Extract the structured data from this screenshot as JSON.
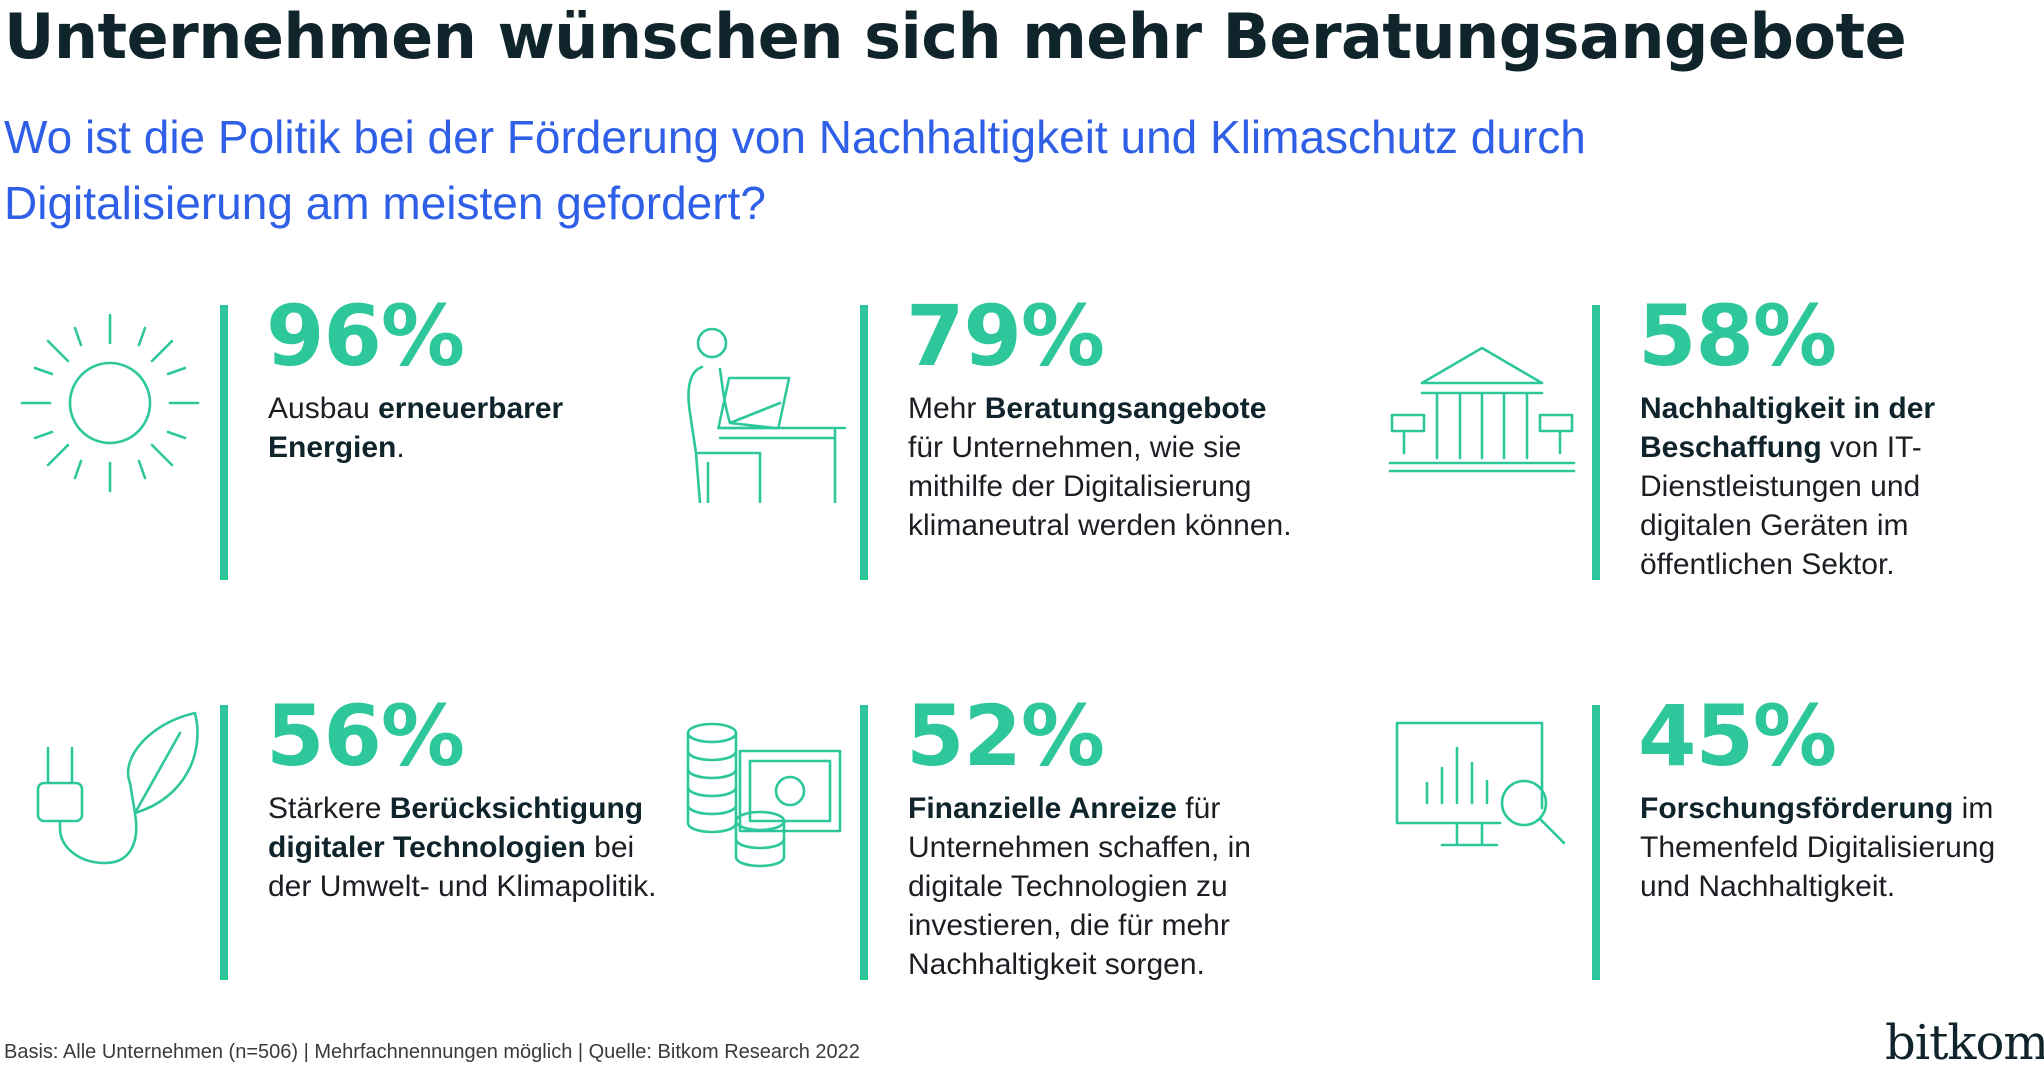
{
  "header": {
    "title": "Unternehmen wünschen sich mehr Beratungsangebote",
    "subtitle": "Wo ist die Politik bei der Förderung von Nachhaltigkeit und Klimaschutz durch Digitalisierung am meisten gefordert?"
  },
  "cards": [
    {
      "icon": "sun-icon",
      "percent": "96%",
      "value": 96,
      "text": {
        "pre": "Ausbau ",
        "bold": "erneuerbarer Energien",
        "post": "."
      }
    },
    {
      "icon": "person-at-desk-icon",
      "percent": "79%",
      "value": 79,
      "text": {
        "pre": "Mehr ",
        "bold": "Beratungsangebote",
        "post": " für Unternehmen, wie sie mithilfe der Digitalisierung klimaneutral werden können."
      }
    },
    {
      "icon": "public-building-icon",
      "percent": "58%",
      "value": 58,
      "text": {
        "pre": "",
        "bold": "Nachhaltigkeit in der Beschaffung",
        "post": " von IT-Dienstleistungen und digitalen Geräten im öffentlichen Sektor."
      }
    },
    {
      "icon": "plug-leaf-icon",
      "percent": "56%",
      "value": 56,
      "text": {
        "pre": "Stärkere ",
        "bold": "Berücksichtigung digitaler Technologien",
        "post": " bei der Umwelt- und Klimapolitik."
      }
    },
    {
      "icon": "coins-banknote-icon",
      "percent": "52%",
      "value": 52,
      "text": {
        "pre": "",
        "bold": "Finanzielle Anreize",
        "post": " für Unternehmen schaffen, in digitale Technologien zu investieren, die für mehr Nachhaltigkeit sorgen."
      }
    },
    {
      "icon": "monitor-magnifier-icon",
      "percent": "45%",
      "value": 45,
      "text": {
        "pre": "",
        "bold": "Forschungsförderung",
        "post": " im Themenfeld Digitalisierung und Nachhaltigkeit."
      }
    }
  ],
  "footer": {
    "source": "Basis: Alle Unternehmen (n=506) | Mehrfachnennungen möglich | Quelle: Bitkom Research 2022",
    "logo": "bitkom"
  },
  "colors": {
    "accent": "#2dc79b",
    "title": "#10242c",
    "subtitle": "#2e5fe6"
  }
}
